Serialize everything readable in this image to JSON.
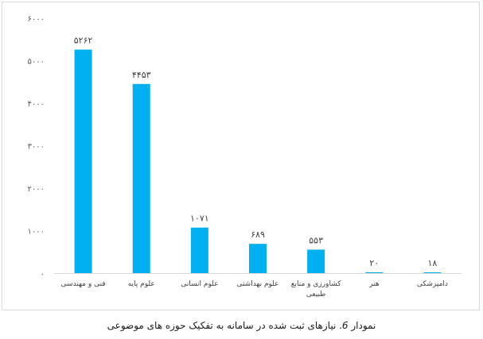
{
  "chart_data": {
    "type": "bar",
    "categories": [
      "فنی و مهندسی",
      "علوم پایه",
      "علوم انسانی",
      "علوم بهداشتی",
      "کشاورزی و منابع طبیعی",
      "هنر",
      "دامپزشکی"
    ],
    "category_lines": [
      [
        "فنی و مهندسی"
      ],
      [
        "علوم پایه"
      ],
      [
        "علوم انسانی"
      ],
      [
        "علوم بهداشتی"
      ],
      [
        "کشاورزی و منابع",
        "طبیعی"
      ],
      [
        "هنر"
      ],
      [
        "دامپزشکی"
      ]
    ],
    "values": [
      5262,
      4453,
      1071,
      689,
      553,
      20,
      18
    ],
    "value_labels": [
      "۵۲۶۲",
      "۴۴۵۳",
      "۱۰۷۱",
      "۶۸۹",
      "۵۵۳",
      "۲۰",
      "۱۸"
    ],
    "yticks": [
      0,
      1000,
      2000,
      3000,
      4000,
      5000,
      6000
    ],
    "ytick_labels": [
      "۰",
      "۱۰۰۰",
      "۲۰۰۰",
      "۳۰۰۰",
      "۴۰۰۰",
      "۵۰۰۰",
      "۶۰۰۰"
    ],
    "ylim": [
      0,
      6000
    ],
    "grid": false,
    "bar_color": "#00b0f0",
    "title": "",
    "xlabel": "",
    "ylabel": ""
  },
  "caption": {
    "prefix": "نمودار ",
    "number": "6",
    "text": ". نیازهای ثبت شده در سامانه به تفکیک حوزه های موضوعی"
  }
}
